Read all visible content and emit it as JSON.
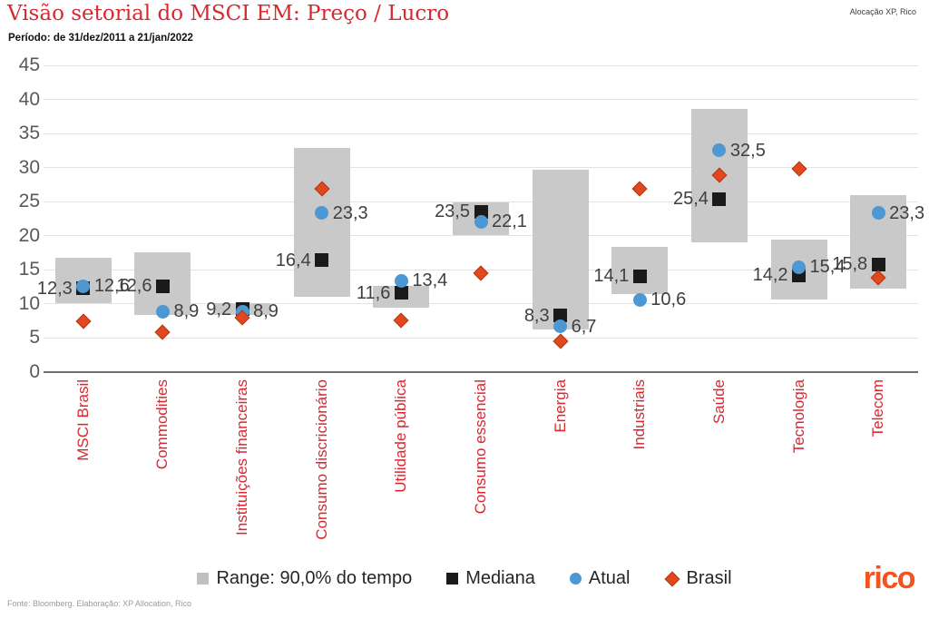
{
  "header": {
    "title": "Visão setorial do MSCI EM: Preço / Lucro",
    "subtitle": "Período: de 31/dez/2011 a 21/jan/2022",
    "source_tag": "Alocação XP, Rico"
  },
  "footer": {
    "source": "Fonte: Bloomberg. Elaboração: XP Allocation, Rico",
    "logo_text": "rico"
  },
  "legend": [
    {
      "marker": "range",
      "label": "Range: 90,0% do tempo"
    },
    {
      "marker": "square",
      "label": "Mediana"
    },
    {
      "marker": "circle",
      "label": "Atual"
    },
    {
      "marker": "diamond",
      "label": "Brasil"
    }
  ],
  "colors": {
    "red": "#D7282F",
    "range": "#C9C9C9",
    "mediana": "#1A1A1A",
    "atual": "#4D97D2",
    "brasil": "#E0481F",
    "brasil_border": "#B5350F",
    "tick": "#595959",
    "value_label": "#3F3F3F",
    "gridline": "#E3E3E3",
    "axis_line": "#6E6E6E",
    "legend_text": "#262626",
    "logo": "#F4531D"
  },
  "chart_data": {
    "type": "bar",
    "subtype": "range-with-markers",
    "title": "Visão setorial do MSCI EM: Preço / Lucro",
    "xlabel": "",
    "ylabel": "",
    "ylim": [
      0,
      45
    ],
    "yticks": [
      0,
      5,
      10,
      15,
      20,
      25,
      30,
      35,
      40,
      45
    ],
    "grid": true,
    "legend_position": "bottom",
    "categories": [
      "MSCI Brasil",
      "Commodities",
      "Instituições financeiras",
      "Consumo discricionário",
      "Utilidade pública",
      "Consumo essencial",
      "Energia",
      "Industriais",
      "Saúde",
      "Tecnologia",
      "Telecom"
    ],
    "series": [
      {
        "name": "Range: 90,0% do tempo",
        "type": "range",
        "low": [
          10.1,
          8.4,
          8.4,
          11.1,
          9.4,
          20.1,
          6.3,
          11.4,
          19.0,
          10.7,
          12.2
        ],
        "high": [
          16.8,
          17.6,
          10.1,
          32.9,
          12.7,
          24.9,
          29.7,
          18.4,
          38.6,
          19.5,
          26.0
        ]
      },
      {
        "name": "Mediana",
        "type": "square",
        "values": [
          12.3,
          12.6,
          9.2,
          16.4,
          11.6,
          23.5,
          8.3,
          14.1,
          25.4,
          14.2,
          15.8
        ],
        "labels": [
          "12,3",
          "12,6",
          "9,2",
          "16,4",
          "11,6",
          "23,5",
          "8,3",
          "14,1",
          "25,4",
          "14,2",
          "15,8"
        ]
      },
      {
        "name": "Atual",
        "type": "circle",
        "values": [
          12.6,
          8.9,
          8.9,
          23.3,
          13.4,
          22.1,
          6.7,
          10.6,
          32.5,
          15.4,
          23.3
        ],
        "labels": [
          "12,6",
          "8,9",
          "8,9",
          "23,3",
          "13,4",
          "22,1",
          "6,7",
          "10,6",
          "32,5",
          "15,4",
          "23,3"
        ]
      },
      {
        "name": "Brasil",
        "type": "diamond",
        "values": [
          7.5,
          5.9,
          8.0,
          26.9,
          7.6,
          14.5,
          4.5,
          26.9,
          28.9,
          29.8,
          13.8
        ],
        "labels": []
      }
    ]
  }
}
